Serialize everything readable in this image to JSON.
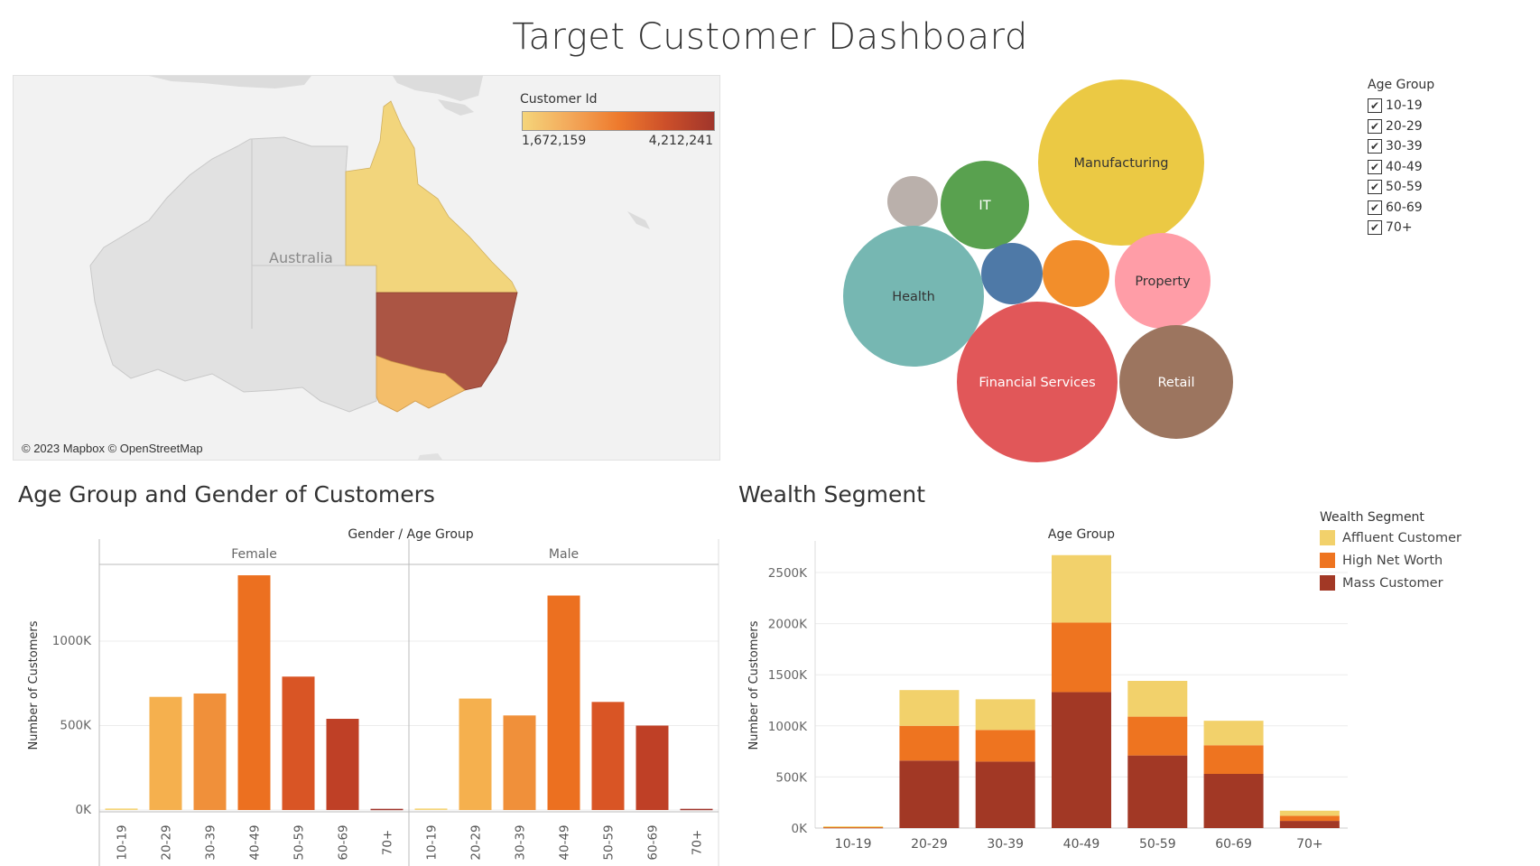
{
  "title": "Target Customer Dashboard",
  "colors": {
    "bar_age": [
      "#f5d57a",
      "#f5b04e",
      "#f0903a",
      "#ec7020",
      "#d95525",
      "#bf4026",
      "#a0352b"
    ],
    "affluent": "#f2d16b",
    "high_net_worth": "#ee7420",
    "mass": "#a23825"
  },
  "map": {
    "legend_title": "Customer Id",
    "legend_min": "1,672,159",
    "legend_max": "4,212,241",
    "country_label": "Australia",
    "credit": "© 2023 Mapbox © OpenStreetMap",
    "states": [
      {
        "name": "Queensland",
        "color": "#f2d57c"
      },
      {
        "name": "New South Wales",
        "color": "#ab5544"
      },
      {
        "name": "Victoria",
        "color": "#f4be6a"
      }
    ]
  },
  "industry_bubbles": {
    "items": [
      {
        "label": "Manufacturing",
        "color": "#ebc944",
        "text_color": "#333333"
      },
      {
        "label": "",
        "color": "#bab0ab",
        "text_color": "#333333"
      },
      {
        "label": "IT",
        "color": "#59a14f",
        "text_color": "#ffffff"
      },
      {
        "label": "Health",
        "color": "#76b7b2",
        "text_color": "#333333"
      },
      {
        "label": "",
        "color": "#4e79a7",
        "text_color": "#ffffff"
      },
      {
        "label": "",
        "color": "#f28e2b",
        "text_color": "#ffffff"
      },
      {
        "label": "Property",
        "color": "#ff9da7",
        "text_color": "#333333"
      },
      {
        "label": "Financial Services",
        "color": "#e15759",
        "text_color": "#ffffff"
      },
      {
        "label": "Retail",
        "color": "#9c755f",
        "text_color": "#ffffff"
      }
    ]
  },
  "age_filter": {
    "title": "Age Group",
    "check_mark": "✔",
    "options": [
      "10-19",
      "20-29",
      "30-39",
      "40-49",
      "50-59",
      "60-69",
      "70+"
    ]
  },
  "gender_section": {
    "title": "Age Group and Gender of Customers"
  },
  "wealth_section": {
    "title": "Wealth Segment"
  },
  "wealth_legend": {
    "title": "Wealth Segment",
    "items": [
      {
        "label": "Affluent Customer",
        "color": "#f2d16b"
      },
      {
        "label": "High Net Worth",
        "color": "#ee7420"
      },
      {
        "label": "Mass Customer",
        "color": "#a23825"
      }
    ]
  },
  "chart_data": [
    {
      "type": "bar",
      "title": "Age Group and Gender of Customers",
      "header": "Gender / Age Group",
      "panels": [
        "Female",
        "Male"
      ],
      "categories": [
        "10-19",
        "20-29",
        "30-39",
        "40-49",
        "50-59",
        "60-69",
        "70+"
      ],
      "series": [
        {
          "name": "Female",
          "values": [
            9000,
            670000,
            690000,
            1390000,
            790000,
            540000,
            7000
          ]
        },
        {
          "name": "Male",
          "values": [
            9000,
            660000,
            560000,
            1270000,
            640000,
            500000,
            7000
          ]
        }
      ],
      "ylabel": "Number of Customers",
      "yticks": [
        0,
        500000,
        1000000
      ],
      "ytick_labels": [
        "0K",
        "500K",
        "1000K"
      ],
      "ylim": [
        0,
        1500000
      ],
      "grid": true
    },
    {
      "type": "bar",
      "stacked": true,
      "title": "Wealth Segment",
      "xlabel": "Age Group",
      "ylabel": "Number of Customers",
      "categories": [
        "10-19",
        "20-29",
        "30-39",
        "40-49",
        "50-59",
        "60-69",
        "70+"
      ],
      "series": [
        {
          "name": "Mass Customer",
          "values": [
            7000,
            660000,
            650000,
            1330000,
            710000,
            530000,
            70000
          ]
        },
        {
          "name": "High Net Worth",
          "values": [
            4000,
            340000,
            310000,
            680000,
            380000,
            280000,
            50000
          ]
        },
        {
          "name": "Affluent Customer",
          "values": [
            6000,
            350000,
            300000,
            660000,
            350000,
            240000,
            50000
          ]
        }
      ],
      "yticks": [
        0,
        500000,
        1000000,
        1500000,
        2000000,
        2500000
      ],
      "ytick_labels": [
        "0K",
        "500K",
        "1000K",
        "1500K",
        "2000K",
        "2500K"
      ],
      "ylim": [
        0,
        2750000
      ],
      "grid": true,
      "legend": "top-right"
    }
  ]
}
